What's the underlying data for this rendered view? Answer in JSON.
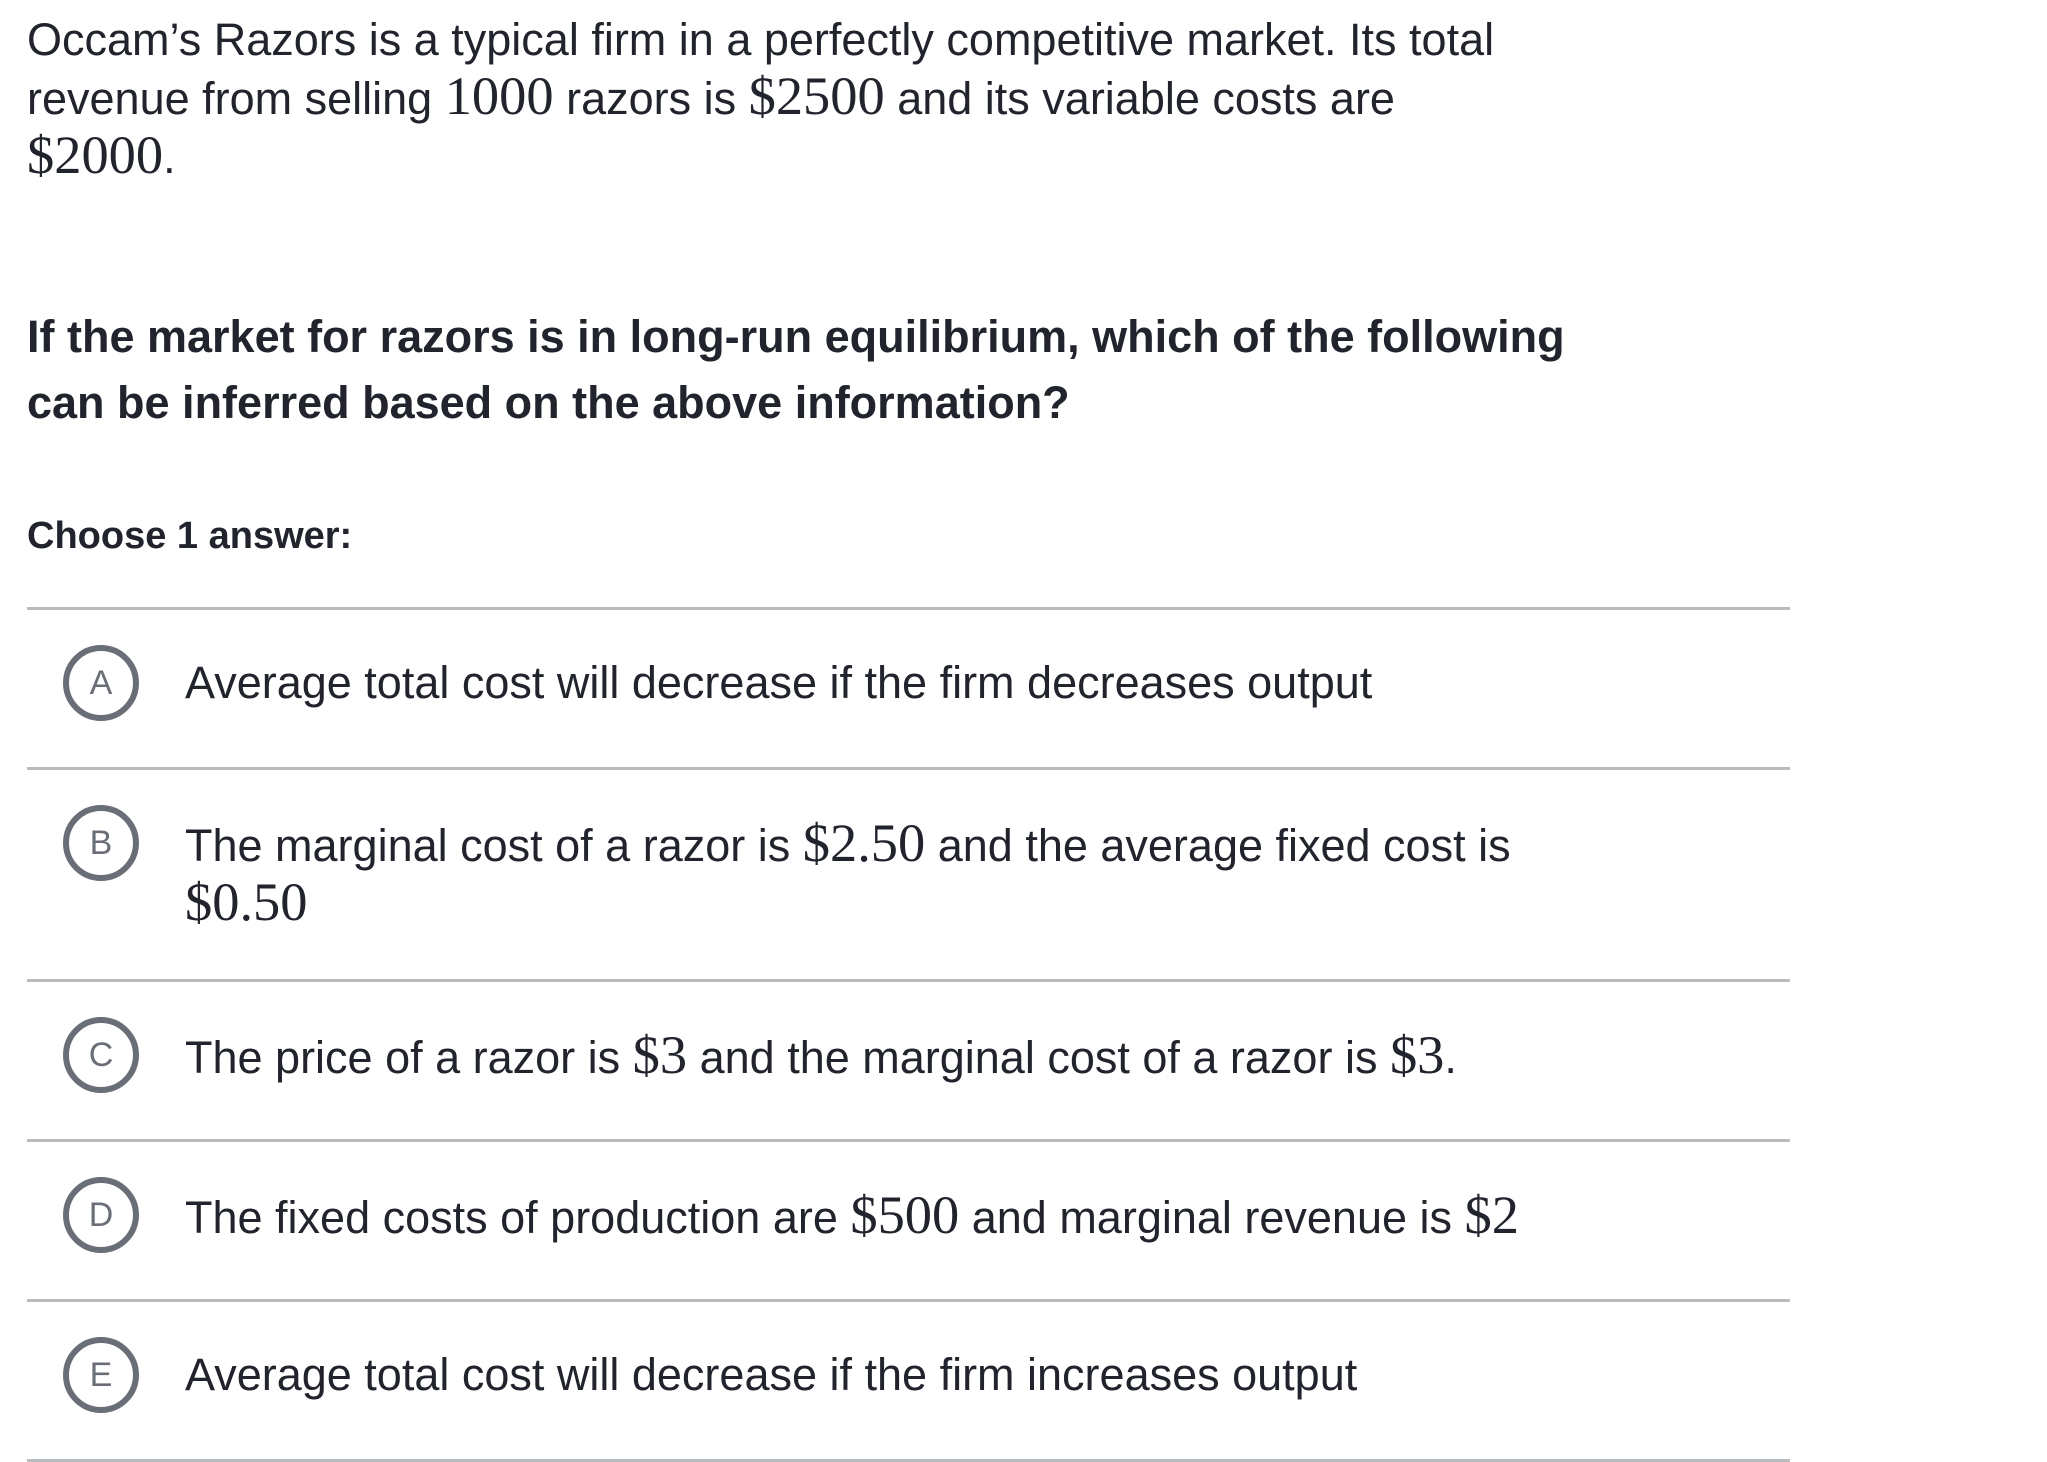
{
  "colors": {
    "text": "#21242c",
    "divider": "#b9bcbf",
    "radio_outline": "#6a6e76",
    "background": "#ffffff"
  },
  "statement": {
    "lines": [
      [
        {
          "text": "Occam’s Razors is a typical firm in a perfectly competitive market. Its total"
        }
      ],
      [
        {
          "text": "revenue from selling "
        },
        {
          "text": "1000",
          "math": true
        },
        {
          "text": " razors is "
        },
        {
          "text": "$2500",
          "math": true
        },
        {
          "text": " and its variable costs are"
        }
      ],
      [
        {
          "text": "$2000",
          "math": true
        },
        {
          "text": "."
        }
      ]
    ]
  },
  "question": {
    "lines": [
      [
        {
          "text": "If the market for razors is in long-run equilibrium, which of the following"
        }
      ],
      [
        {
          "text": "can be inferred based on the above information?"
        }
      ]
    ]
  },
  "choose_label": "Choose 1 answer:",
  "options": [
    {
      "letter": "A",
      "lines": [
        [
          {
            "text": "Average total cost will decrease if the firm decreases output"
          }
        ]
      ]
    },
    {
      "letter": "B",
      "lines": [
        [
          {
            "text": "The marginal cost of a razor is "
          },
          {
            "text": "$2.50",
            "math": true
          },
          {
            "text": " and the average fixed cost is"
          }
        ],
        [
          {
            "text": "$0.50",
            "math": true
          }
        ]
      ]
    },
    {
      "letter": "C",
      "lines": [
        [
          {
            "text": "The price of a razor is "
          },
          {
            "text": "$3",
            "math": true
          },
          {
            "text": " and the marginal cost of a razor is "
          },
          {
            "text": "$3",
            "math": true
          },
          {
            "text": "."
          }
        ]
      ]
    },
    {
      "letter": "D",
      "lines": [
        [
          {
            "text": "The fixed costs of production are "
          },
          {
            "text": "$500",
            "math": true
          },
          {
            "text": " and marginal revenue is "
          },
          {
            "text": "$2",
            "math": true
          }
        ]
      ]
    },
    {
      "letter": "E",
      "lines": [
        [
          {
            "text": "Average total cost will decrease if the firm increases output"
          }
        ]
      ]
    }
  ]
}
